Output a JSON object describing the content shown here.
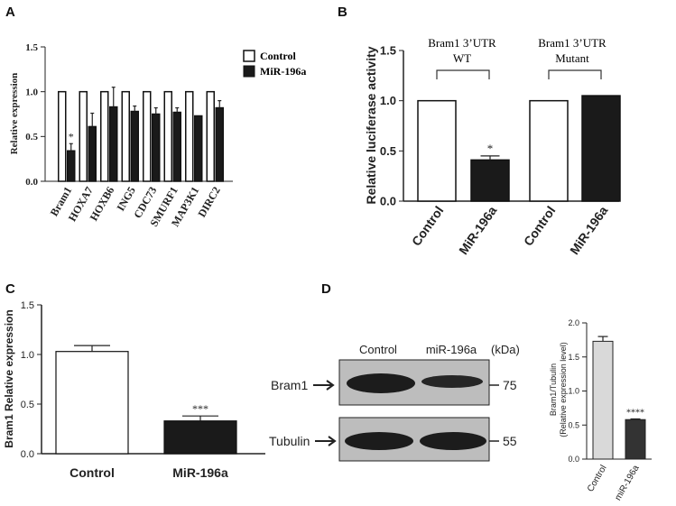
{
  "panels": {
    "A": {
      "letter": "A",
      "chart_data": {
        "type": "bar",
        "categories": [
          "Bram1",
          "HOXA7",
          "HOXB6",
          "ING5",
          "CDC73",
          "SMURF1",
          "MAP3K1",
          "DIRC2"
        ],
        "series": [
          {
            "name": "Control",
            "values": [
              1.0,
              1.0,
              1.0,
              1.0,
              1.0,
              1.0,
              1.0,
              1.0
            ],
            "errors": [
              0,
              0,
              0,
              0,
              0,
              0,
              0,
              0
            ]
          },
          {
            "name": "MiR-196a",
            "values": [
              0.34,
              0.61,
              0.83,
              0.78,
              0.75,
              0.77,
              0.73,
              0.82
            ],
            "errors": [
              0.08,
              0.15,
              0.22,
              0.06,
              0.07,
              0.05,
              0.0,
              0.08
            ]
          }
        ],
        "significance": [
          "*",
          "",
          "",
          "",
          "",
          "",
          "",
          ""
        ],
        "ylabel": "Relative expression",
        "ylim": [
          0,
          1.5
        ],
        "yticks": [
          "0.0",
          "0.5",
          "1.0",
          "1.5"
        ],
        "legend": [
          "Control",
          "MiR-196a"
        ],
        "colors": {
          "Control": "#ffffff",
          "MiR-196a": "#1a1a1a"
        }
      }
    },
    "B": {
      "letter": "B",
      "chart_data": {
        "type": "bar",
        "categories": [
          "Control",
          "MiR-196a",
          "Control",
          "MiR-196a"
        ],
        "values": [
          1.0,
          0.41,
          1.0,
          1.05
        ],
        "errors": [
          0,
          0.04,
          0,
          0
        ],
        "fills": [
          "#ffffff",
          "#1a1a1a",
          "#ffffff",
          "#1a1a1a"
        ],
        "significance": [
          "",
          "*",
          "",
          ""
        ],
        "groups": [
          {
            "line1": "Bram1 3’UTR",
            "line2": "WT"
          },
          {
            "line1": "Bram1 3’UTR",
            "line2": "Mutant"
          }
        ],
        "ylabel": "Relative luciferase activity",
        "ylim": [
          0,
          1.5
        ],
        "yticks": [
          "0.0",
          "0.5",
          "1.0",
          "1.5"
        ]
      }
    },
    "C": {
      "letter": "C",
      "chart_data": {
        "type": "bar",
        "categories": [
          "Control",
          "MiR-196a"
        ],
        "values": [
          1.03,
          0.33
        ],
        "errors": [
          0.06,
          0.05
        ],
        "fills": [
          "#ffffff",
          "#1a1a1a"
        ],
        "significance": [
          "",
          "***"
        ],
        "ylabel": "Bram1 Relative expression",
        "ylim": [
          0,
          1.5
        ],
        "yticks": [
          "0.0",
          "0.5",
          "1.0",
          "1.5"
        ]
      }
    },
    "D": {
      "letter": "D",
      "blot": {
        "lane_labels": [
          "Control",
          "miR-196a"
        ],
        "unit": "(kDa)",
        "rows": [
          {
            "label": "Bram1",
            "marker": "75"
          },
          {
            "label": "Tubulin",
            "marker": "55"
          }
        ]
      },
      "chart_data": {
        "type": "bar",
        "categories": [
          "Control",
          "miR-196a"
        ],
        "values": [
          1.73,
          0.58
        ],
        "errors": [
          0.07,
          0.01
        ],
        "fills": [
          "#d9d9d9",
          "#333333"
        ],
        "significance": [
          "",
          "****"
        ],
        "ylabel_line1": "Bram1/Tubulin",
        "ylabel_line2": "(Relative expression level)",
        "ylim": [
          0,
          2.0
        ],
        "yticks": [
          "0.0",
          "0.5",
          "1.0",
          "1.5",
          "2.0"
        ]
      }
    }
  }
}
